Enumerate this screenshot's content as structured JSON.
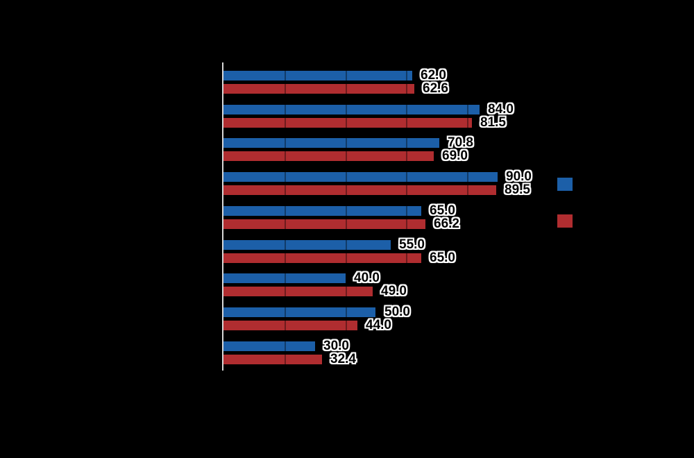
{
  "background_color": "#000000",
  "chart_data": {
    "type": "bar",
    "orientation": "horizontal",
    "title": "",
    "xlabel": "",
    "ylabel": "",
    "xlim": [
      0,
      100
    ],
    "gridline_interval": 20,
    "grid": true,
    "legend_position": "right",
    "num_groups": 9,
    "categories": [
      "",
      "",
      "",
      "",
      "",
      "",
      "",
      "",
      ""
    ],
    "series": [
      {
        "name": "blue",
        "color": "#1c5fa8",
        "values": [
          62.0,
          84.0,
          70.8,
          90.0,
          65.0,
          55.0,
          40.0,
          50.0,
          30.0
        ],
        "labels": [
          "62.0",
          "84.0",
          "70.8",
          "90.0",
          "65.0",
          "55.0",
          "40.0",
          "50.0",
          "30.0"
        ]
      },
      {
        "name": "red",
        "color": "#b02d30",
        "values": [
          62.6,
          81.5,
          69.0,
          89.5,
          66.2,
          65.0,
          49.0,
          44.0,
          32.4
        ],
        "labels": [
          "62.6",
          "81.5",
          "69.0",
          "89.5",
          "66.2",
          "65.0",
          "49.0",
          "44.0",
          "32.4"
        ]
      }
    ]
  },
  "axis": {
    "line_color": "#d8d8d8"
  },
  "legend": {
    "swatches": [
      {
        "name": "blue",
        "color": "#1c5fa8"
      },
      {
        "name": "red",
        "color": "#b02d30"
      }
    ]
  }
}
